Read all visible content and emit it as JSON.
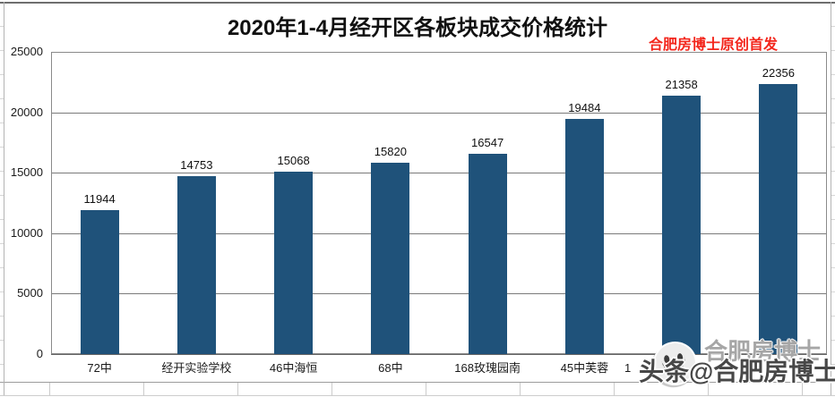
{
  "header": {
    "title": "2020年1-4月经开区各板块成交价格统计",
    "credit": "合肥房博士原创首发"
  },
  "watermark": {
    "ghost_text": "合肥房博士",
    "main_text": "头条@合肥房博士",
    "logo": "smiley-face-icon"
  },
  "colors": {
    "bar": "#1f527a",
    "credit": "#f3261c",
    "gridline": "#7a7a7a",
    "excel_grid": "#cccccc",
    "watermark": "#474747",
    "background": "#ffffff"
  },
  "chart_data": {
    "type": "bar",
    "title": "2020年1-4月经开区各板块成交价格统计",
    "categories": [
      "72中",
      "经开实验学校",
      "46中海恒",
      "68中",
      "168玫瑰园南",
      "45中芙蓉",
      "1",
      ""
    ],
    "values": [
      11944,
      14753,
      15068,
      15820,
      16547,
      19484,
      21358,
      22356
    ],
    "xlabel": "",
    "ylabel": "",
    "ylim": [
      0,
      25000
    ],
    "yticks": [
      0,
      5000,
      10000,
      15000,
      20000,
      25000
    ],
    "grid": "horizontal",
    "legend": "none",
    "bar_color": "#1f527a"
  }
}
